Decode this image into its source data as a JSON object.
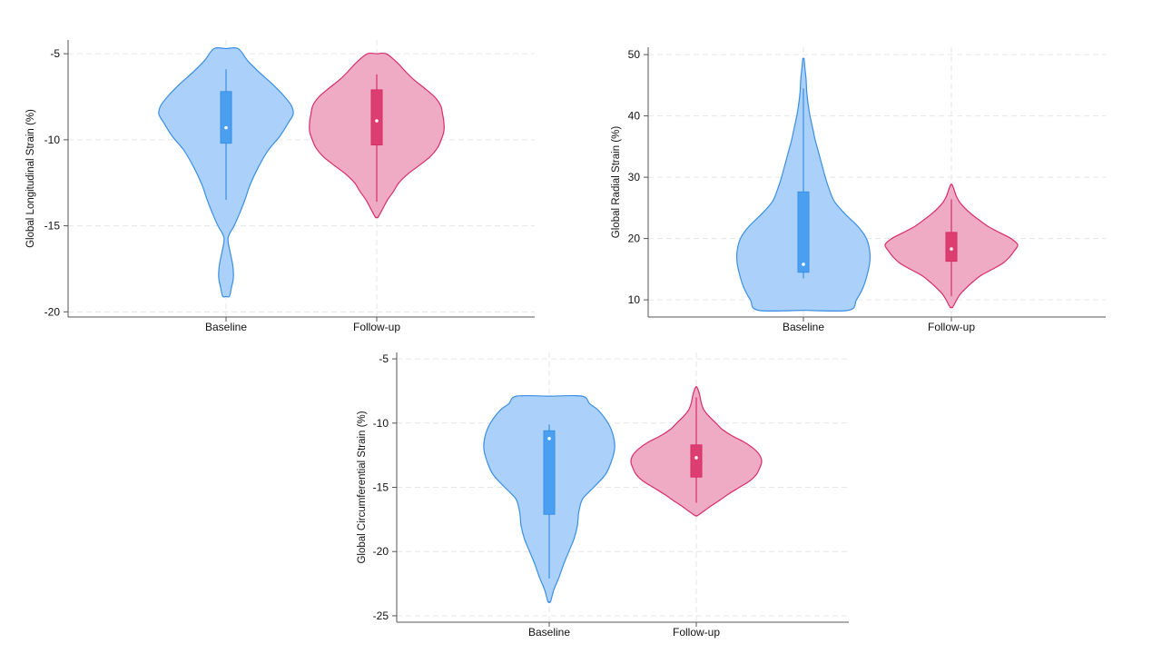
{
  "colors": {
    "baseline_fill": "#abd1fb",
    "baseline_stroke": "#3a8fe3",
    "baseline_box": "#4a9ff0",
    "followup_fill": "#efaac4",
    "followup_stroke": "#d62e67",
    "followup_box": "#dc3e72",
    "grid": "#e6e6e6",
    "axis": "#555555"
  },
  "chart_data": [
    {
      "type": "violin",
      "ylabel": "Global Longitudinal Strain (%)",
      "categories": [
        "Baseline",
        "Follow-up"
      ],
      "yticks": [
        -5,
        -10,
        -15,
        -20
      ],
      "ylim": [
        -20.3,
        -4.2
      ],
      "grid": true,
      "series": [
        {
          "name": "Baseline",
          "median": -9.3,
          "q1": -10.2,
          "q3": -7.2,
          "whisker_low": -13.5,
          "whisker_high": -5.9,
          "range": [
            -19.1,
            -4.7
          ],
          "density_y": [
            -19.1,
            -18.6,
            -18.0,
            -17.3,
            -16.5,
            -15.7,
            -15.0,
            -14.3,
            -13.5,
            -12.6,
            -11.6,
            -10.6,
            -9.8,
            -9.0,
            -8.5,
            -8.0,
            -7.4,
            -6.8,
            -6.1,
            -5.4,
            -4.7
          ],
          "density_w": [
            0.05,
            0.08,
            0.11,
            0.1,
            0.06,
            0.03,
            0.12,
            0.2,
            0.28,
            0.36,
            0.48,
            0.63,
            0.8,
            0.93,
            1.0,
            0.97,
            0.85,
            0.7,
            0.5,
            0.32,
            0.18
          ]
        },
        {
          "name": "Follow-up",
          "median": -8.9,
          "q1": -10.3,
          "q3": -7.1,
          "whisker_low": -13.6,
          "whisker_high": -6.2,
          "range": [
            -14.5,
            -5.0
          ],
          "density_y": [
            -14.5,
            -14.0,
            -13.5,
            -13.0,
            -12.5,
            -12.0,
            -11.5,
            -11.0,
            -10.5,
            -10.0,
            -9.5,
            -9.0,
            -8.5,
            -8.0,
            -7.5,
            -7.0,
            -6.5,
            -6.0,
            -5.5,
            -5.0
          ],
          "density_w": [
            0.02,
            0.09,
            0.16,
            0.25,
            0.33,
            0.46,
            0.63,
            0.79,
            0.9,
            0.96,
            1.0,
            1.0,
            0.98,
            0.95,
            0.86,
            0.71,
            0.55,
            0.42,
            0.3,
            0.14
          ]
        }
      ]
    },
    {
      "type": "violin",
      "ylabel": "Global Radial Strain (%)",
      "categories": [
        "Baseline",
        "Follow-up"
      ],
      "yticks": [
        50,
        40,
        30,
        20,
        10
      ],
      "ylim": [
        7.2,
        51.2
      ],
      "grid": true,
      "series": [
        {
          "name": "Baseline",
          "median": 15.8,
          "q1": 14.5,
          "q3": 27.6,
          "whisker_low": 13.5,
          "whisker_high": 44.5,
          "range": [
            8.3,
            49.3
          ],
          "density_y": [
            8.3,
            10.0,
            12.0,
            14.0,
            16.0,
            18.0,
            20.0,
            22.0,
            24.0,
            26.0,
            28.0,
            30.0,
            32.0,
            34.0,
            36.0,
            38.0,
            40.0,
            42.0,
            44.0,
            46.0,
            48.0,
            49.3
          ],
          "density_w": [
            0.68,
            0.8,
            0.9,
            0.96,
            1.0,
            1.0,
            0.95,
            0.82,
            0.63,
            0.47,
            0.39,
            0.33,
            0.28,
            0.23,
            0.18,
            0.14,
            0.1,
            0.07,
            0.05,
            0.04,
            0.02,
            0.01
          ]
        },
        {
          "name": "Follow-up",
          "median": 18.3,
          "q1": 16.3,
          "q3": 21.0,
          "whisker_low": 10.6,
          "whisker_high": 26.4,
          "range": [
            8.8,
            28.8
          ],
          "density_y": [
            8.8,
            10.0,
            11.0,
            12.0,
            13.0,
            14.0,
            15.0,
            16.0,
            17.0,
            18.0,
            19.0,
            20.0,
            21.0,
            22.0,
            23.0,
            24.0,
            25.0,
            26.0,
            27.0,
            28.0,
            28.8
          ],
          "density_w": [
            0.02,
            0.08,
            0.14,
            0.23,
            0.33,
            0.45,
            0.62,
            0.78,
            0.88,
            0.95,
            1.0,
            0.9,
            0.72,
            0.55,
            0.42,
            0.3,
            0.2,
            0.12,
            0.07,
            0.04,
            0.01
          ]
        }
      ]
    },
    {
      "type": "violin",
      "ylabel": "Global Circumferential Strain (%)",
      "categories": [
        "Baseline",
        "Follow-up"
      ],
      "yticks": [
        -5,
        -10,
        -15,
        -20,
        -25
      ],
      "ylim": [
        -25.5,
        -4.5
      ],
      "grid": true,
      "series": [
        {
          "name": "Baseline",
          "median": -11.2,
          "q1": -17.1,
          "q3": -10.6,
          "whisker_low": -22.1,
          "whisker_high": -10.1,
          "range": [
            -23.9,
            -7.9
          ],
          "density_y": [
            -23.9,
            -23.0,
            -22.0,
            -21.0,
            -20.0,
            -19.0,
            -18.0,
            -17.0,
            -16.0,
            -15.5,
            -15.0,
            -14.0,
            -13.0,
            -12.0,
            -11.0,
            -10.0,
            -9.0,
            -8.5,
            -7.9
          ],
          "density_w": [
            0.02,
            0.07,
            0.15,
            0.22,
            0.3,
            0.38,
            0.43,
            0.45,
            0.5,
            0.58,
            0.68,
            0.86,
            0.95,
            1.0,
            0.98,
            0.9,
            0.75,
            0.62,
            0.5
          ]
        },
        {
          "name": "Follow-up",
          "median": -12.7,
          "q1": -14.2,
          "q3": -11.7,
          "whisker_low": -16.2,
          "whisker_high": -8.0,
          "range": [
            -17.2,
            -7.2
          ],
          "density_y": [
            -17.2,
            -16.8,
            -16.4,
            -16.0,
            -15.5,
            -15.0,
            -14.5,
            -14.0,
            -13.5,
            -13.0,
            -12.5,
            -12.0,
            -11.5,
            -11.0,
            -10.5,
            -10.0,
            -9.5,
            -9.0,
            -8.5,
            -8.0,
            -7.6,
            -7.2
          ],
          "density_w": [
            0.02,
            0.13,
            0.24,
            0.36,
            0.5,
            0.66,
            0.82,
            0.92,
            0.97,
            1.0,
            0.97,
            0.88,
            0.74,
            0.55,
            0.4,
            0.3,
            0.2,
            0.12,
            0.08,
            0.06,
            0.04,
            0.01
          ]
        }
      ]
    }
  ]
}
